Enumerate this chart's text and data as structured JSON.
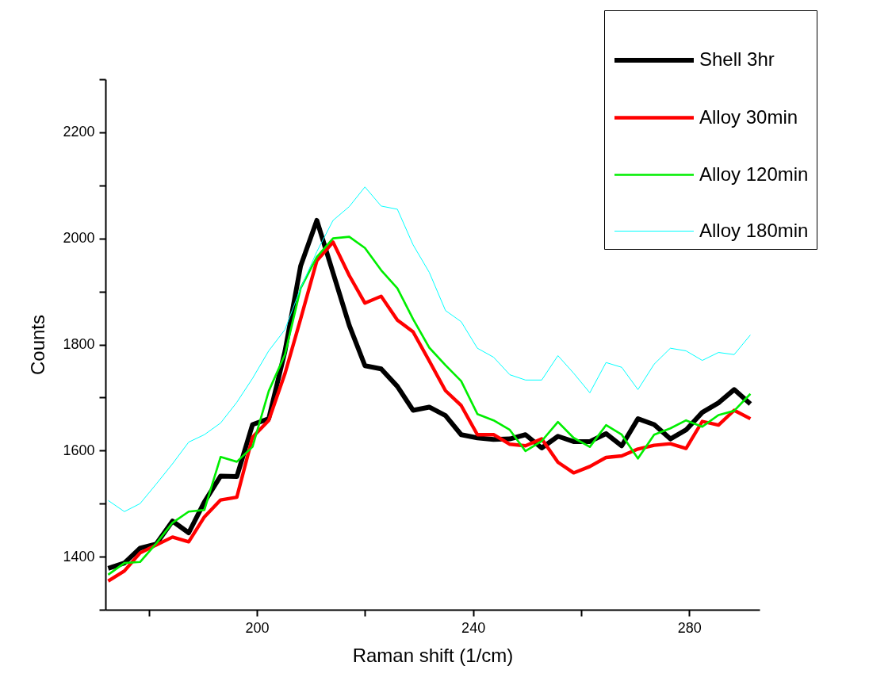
{
  "chart_data": {
    "type": "line",
    "xlabel": "Raman shift (1/cm)",
    "ylabel": "Counts",
    "x": [
      172.5,
      175.5,
      178.4,
      181.4,
      184.4,
      187.4,
      190.3,
      193.3,
      196.3,
      199.2,
      202.2,
      205.2,
      208.1,
      211.1,
      214.1,
      217.1,
      220.0,
      223.0,
      226.0,
      228.9,
      231.9,
      234.9,
      237.8,
      240.8,
      243.8,
      246.8,
      249.7,
      252.7,
      255.7,
      258.6,
      261.6,
      264.6,
      267.5,
      270.5,
      273.5,
      276.5,
      279.4,
      282.4,
      285.4,
      288.3,
      291.3
    ],
    "series": [
      {
        "name": "Shell 3hr",
        "color": "#000000",
        "values": [
          1378,
          1388,
          1416,
          1424,
          1467,
          1445,
          1503,
          1552,
          1551,
          1649,
          1660,
          1787,
          1948,
          2034,
          1935,
          1836,
          1760,
          1754,
          1721,
          1676,
          1682,
          1666,
          1630,
          1624,
          1621,
          1622,
          1630,
          1605,
          1627,
          1617,
          1617,
          1632,
          1609,
          1660,
          1649,
          1622,
          1639,
          1672,
          1690,
          1715,
          1688
        ]
      },
      {
        "name": "Alloy 30min",
        "color": "#ff0000",
        "values": [
          1354,
          1373,
          1407,
          1422,
          1437,
          1428,
          1475,
          1507,
          1512,
          1625,
          1657,
          1745,
          1848,
          1958,
          1993,
          1930,
          1878,
          1891,
          1846,
          1824,
          1769,
          1713,
          1685,
          1630,
          1630,
          1612,
          1609,
          1622,
          1578,
          1558,
          1570,
          1587,
          1590,
          1603,
          1610,
          1613,
          1604,
          1655,
          1648,
          1676,
          1660
        ]
      },
      {
        "name": "Alloy 120min",
        "color": "#00ee00",
        "values": [
          1366,
          1388,
          1390,
          1425,
          1464,
          1485,
          1488,
          1588,
          1579,
          1607,
          1712,
          1781,
          1906,
          1965,
          2000,
          2003,
          1982,
          1940,
          1906,
          1848,
          1794,
          1761,
          1731,
          1669,
          1657,
          1639,
          1599,
          1618,
          1654,
          1624,
          1607,
          1648,
          1630,
          1585,
          1630,
          1642,
          1657,
          1645,
          1667,
          1675,
          1707
        ]
      },
      {
        "name": "Alloy 180min",
        "color": "#00ffff",
        "values": [
          1506,
          1485,
          1500,
          1537,
          1575,
          1616,
          1630,
          1652,
          1691,
          1736,
          1788,
          1828,
          1906,
          1975,
          2034,
          2060,
          2097,
          2061,
          2055,
          1988,
          1936,
          1864,
          1843,
          1793,
          1776,
          1743,
          1733,
          1733,
          1779,
          1746,
          1709,
          1766,
          1757,
          1715,
          1763,
          1793,
          1788,
          1770,
          1785,
          1781,
          1818
        ]
      }
    ],
    "xlim": [
      172,
      293
    ],
    "xticks": [
      {
        "value": 180,
        "label": null
      },
      200,
      {
        "value": 220,
        "label": null
      },
      240,
      {
        "value": 260,
        "label": null
      },
      280
    ],
    "ylim": [
      1300,
      2300
    ],
    "yticks": [
      {
        "value": 1300,
        "label": null
      },
      1400,
      {
        "value": 1500,
        "label": null
      },
      1600,
      {
        "value": 1700,
        "label": null
      },
      1800,
      {
        "value": 1900,
        "label": null
      },
      2000,
      {
        "value": 2100,
        "label": null
      },
      2200,
      {
        "value": 2300,
        "label": null
      }
    ],
    "legend": "top right",
    "grid": false,
    "marker": "none",
    "line_style": "solid"
  }
}
